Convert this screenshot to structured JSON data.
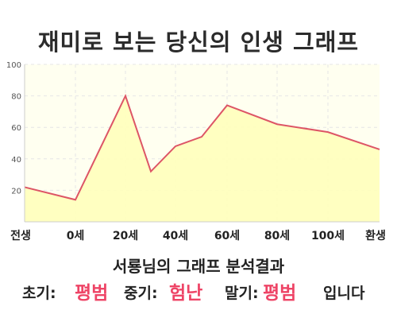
{
  "title": "재미로 보는 당신의 인생 그래프",
  "chart_data": {
    "type": "area",
    "x_categories": [
      "전생",
      "0세",
      "20세",
      "40세",
      "60세",
      "80세",
      "100세",
      "환생"
    ],
    "points": [
      {
        "x": "전생",
        "y": 22
      },
      {
        "x": "0세",
        "y": 14
      },
      {
        "x": "20세",
        "y": 80
      },
      {
        "x": "30세",
        "y": 32
      },
      {
        "x": "40세",
        "y": 48
      },
      {
        "x": "50세",
        "y": 54
      },
      {
        "x": "60세",
        "y": 74
      },
      {
        "x": "80세",
        "y": 62
      },
      {
        "x": "100세",
        "y": 57
      },
      {
        "x": "환생",
        "y": 46
      }
    ],
    "ylim": [
      0,
      100
    ],
    "yticks": [
      20,
      40,
      60,
      80,
      100
    ],
    "grid": true,
    "line_color": "#dd5566",
    "fill_color": "#ffffbb"
  },
  "summary": {
    "title": "서룡님의 그래프 분석결과",
    "early_label": "초기:",
    "early_value": "평범",
    "mid_label": "중기:",
    "mid_value": "험난",
    "late_label": "말기:",
    "late_value": "평범",
    "ending": "입니다"
  }
}
